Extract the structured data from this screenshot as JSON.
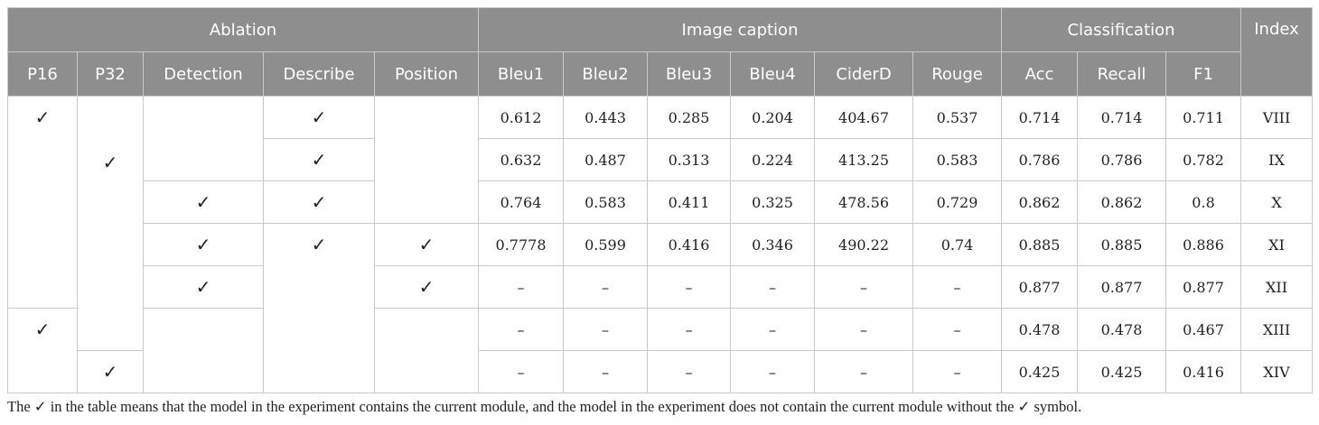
{
  "table": {
    "groups": [
      "Ablation",
      "Image caption",
      "Classification",
      "Index"
    ],
    "columns": [
      "P16",
      "P32",
      "Detection",
      "Describe",
      "Position",
      "Bleu1",
      "Bleu2",
      "Bleu3",
      "Bleu4",
      "CiderD",
      "Rouge",
      "Acc",
      "Recall",
      "F1"
    ],
    "rows": [
      [
        "✓",
        "✓",
        "✓",
        "0.612",
        "0.443",
        "0.285",
        "0.204",
        "404.67",
        "0.537",
        "0.714",
        "0.714",
        "0.711",
        "VIII"
      ],
      [
        "✓",
        "0.632",
        "0.487",
        "0.313",
        "0.224",
        "413.25",
        "0.583",
        "0.786",
        "0.786",
        "0.782",
        "IX"
      ],
      [
        "✓",
        "✓",
        "0.764",
        "0.583",
        "0.411",
        "0.325",
        "478.56",
        "0.729",
        "0.862",
        "0.862",
        "0.8",
        "X"
      ],
      [
        "✓",
        "✓",
        "✓",
        "0.7778",
        "0.599",
        "0.416",
        "0.346",
        "490.22",
        "0.74",
        "0.885",
        "0.885",
        "0.886",
        "XI"
      ],
      [
        "✓",
        "✓",
        "–",
        "–",
        "–",
        "–",
        "–",
        "–",
        "0.877",
        "0.877",
        "0.877",
        "XII"
      ],
      [
        "✓",
        "–",
        "–",
        "–",
        "–",
        "–",
        "–",
        "0.478",
        "0.478",
        "0.467",
        "XIII"
      ],
      [
        "✓",
        "–",
        "–",
        "–",
        "–",
        "–",
        "–",
        "0.425",
        "0.425",
        "0.416",
        "XIV"
      ]
    ]
  },
  "footnote": "The ✓ in the table means that the model in the experiment contains the current module, and the model in the experiment does not contain the current module without the ✓ symbol."
}
